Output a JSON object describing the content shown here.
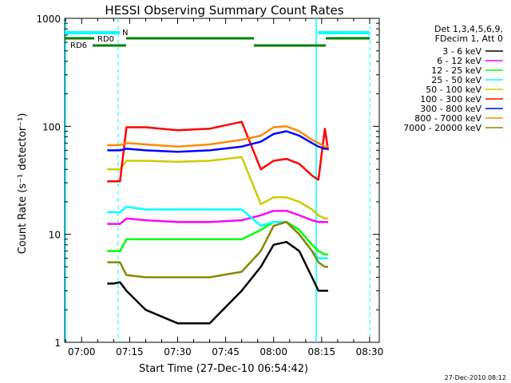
{
  "chart_data": {
    "type": "line",
    "title": "HESSI Observing Summary Count Rates",
    "xlabel": "Start Time (27-Dec-10 06:54:42)",
    "ylabel": "Count Rate (s⁻¹ detector⁻¹)",
    "y_scale": "log",
    "ylim": [
      1,
      1000
    ],
    "xlim": [
      "06:54:42",
      "08:33"
    ],
    "x_ticks": [
      "07:00",
      "07:15",
      "07:30",
      "07:45",
      "08:00",
      "08:15",
      "08:30"
    ],
    "y_ticks": [
      "1",
      "10",
      "100",
      "1000"
    ],
    "legend_header": [
      "Det 1,3,4,5,6,9,",
      "FDecim 1, Att 0"
    ],
    "legend_position": "right",
    "footer_timestamp": "27-Dec-2010 08:12",
    "series": [
      {
        "name": "3 - 6 keV",
        "color": "#000000",
        "x": [
          "07:08",
          "07:10",
          "07:12",
          "07:14",
          "07:20",
          "07:30",
          "07:40",
          "07:50",
          "07:56",
          "08:00",
          "08:04",
          "08:08",
          "08:12",
          "08:14",
          "08:16",
          "08:17"
        ],
        "values": [
          3.5,
          3.5,
          3.6,
          3,
          2,
          1.5,
          1.5,
          3,
          5,
          8,
          8.5,
          7,
          4,
          3,
          3,
          3
        ]
      },
      {
        "name": "6 - 12 keV",
        "color": "#ff00ff",
        "x": [
          "07:08",
          "07:12",
          "07:14",
          "07:20",
          "07:30",
          "07:40",
          "07:50",
          "07:56",
          "08:00",
          "08:04",
          "08:08",
          "08:12",
          "08:14",
          "08:16",
          "08:17"
        ],
        "values": [
          12.5,
          12.5,
          14,
          13.5,
          13,
          13,
          13.5,
          15,
          16.5,
          16.5,
          15,
          13.5,
          13,
          13,
          13
        ]
      },
      {
        "name": "12 - 25 keV",
        "color": "#00ff00",
        "x": [
          "07:08",
          "07:12",
          "07:14",
          "07:20",
          "07:30",
          "07:40",
          "07:50",
          "07:56",
          "08:00",
          "08:04",
          "08:08",
          "08:12",
          "08:14",
          "08:16",
          "08:17"
        ],
        "values": [
          7,
          7,
          9,
          9,
          9,
          9,
          9,
          11,
          13,
          13,
          11,
          8,
          7,
          6.5,
          6.5
        ]
      },
      {
        "name": "25 - 50 keV",
        "color": "#00ffff",
        "x": [
          "07:08",
          "07:12",
          "07:14",
          "07:20",
          "07:30",
          "07:40",
          "07:50",
          "07:56",
          "08:00",
          "08:04",
          "08:08",
          "08:12",
          "08:14",
          "08:16",
          "08:17"
        ],
        "values": [
          16,
          16,
          18,
          17,
          17,
          17,
          17,
          12,
          13,
          13,
          10,
          7,
          6,
          6,
          6
        ]
      },
      {
        "name": "50 - 100 keV",
        "color": "#cccc00",
        "x": [
          "07:08",
          "07:12",
          "07:14",
          "07:20",
          "07:30",
          "07:40",
          "07:50",
          "07:56",
          "08:00",
          "08:04",
          "08:08",
          "08:12",
          "08:14",
          "08:16",
          "08:17"
        ],
        "values": [
          40,
          40,
          48,
          48,
          47,
          48,
          52,
          19,
          22,
          22,
          20,
          17,
          15,
          14,
          14
        ]
      },
      {
        "name": "100 - 300 keV",
        "color": "#ff0000",
        "x": [
          "07:08",
          "07:12",
          "07:14",
          "07:20",
          "07:30",
          "07:40",
          "07:50",
          "07:56",
          "08:00",
          "08:04",
          "08:08",
          "08:12",
          "08:14",
          "08:16",
          "08:17"
        ],
        "values": [
          31,
          31,
          98,
          98,
          92,
          95,
          110,
          40,
          48,
          50,
          45,
          35,
          32,
          95,
          60
        ]
      },
      {
        "name": "300 - 800 keV",
        "color": "#0000ff",
        "x": [
          "07:08",
          "07:12",
          "07:14",
          "07:20",
          "07:30",
          "07:40",
          "07:50",
          "07:56",
          "08:00",
          "08:04",
          "08:08",
          "08:12",
          "08:14",
          "08:16",
          "08:17"
        ],
        "values": [
          60,
          60,
          62,
          60,
          58,
          60,
          65,
          72,
          85,
          90,
          82,
          70,
          65,
          62,
          62
        ]
      },
      {
        "name": "800 - 7000 keV",
        "color": "#ff8800",
        "x": [
          "07:08",
          "07:12",
          "07:14",
          "07:20",
          "07:30",
          "07:40",
          "07:50",
          "07:56",
          "08:00",
          "08:04",
          "08:08",
          "08:12",
          "08:14",
          "08:16",
          "08:17"
        ],
        "values": [
          67,
          67,
          70,
          68,
          65,
          68,
          75,
          82,
          98,
          100,
          90,
          75,
          70,
          65,
          65
        ]
      },
      {
        "name": "7000 - 20000 keV",
        "color": "#888800",
        "x": [
          "07:08",
          "07:12",
          "07:14",
          "07:20",
          "07:30",
          "07:40",
          "07:50",
          "07:56",
          "08:00",
          "08:04",
          "08:08",
          "08:12",
          "08:14",
          "08:16",
          "08:17"
        ],
        "values": [
          5.5,
          5.5,
          4.2,
          4,
          4,
          4,
          4.5,
          7,
          12,
          13,
          10,
          7,
          5.5,
          5,
          5
        ]
      }
    ],
    "annotations": [
      {
        "label": "N",
        "color": "#00ffff"
      },
      {
        "label": "RD0",
        "color": "#007f00"
      },
      {
        "label": "RD6",
        "color": "#007f00"
      }
    ],
    "grid": false
  }
}
